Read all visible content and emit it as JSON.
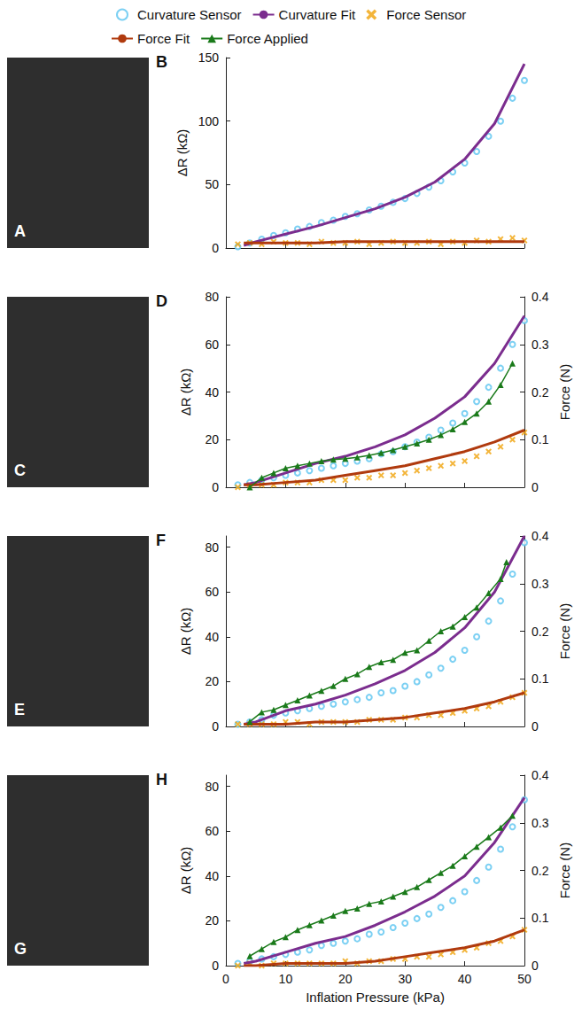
{
  "photo_panels": [
    "A",
    "C",
    "E",
    "G"
  ],
  "chart_data": [
    {
      "type": "scatter",
      "panel": "B",
      "ylabel": "ΔR (kΩ)",
      "xlim": [
        0,
        50
      ],
      "xticks": [
        0,
        10,
        20,
        30,
        40,
        50
      ],
      "ylim": [
        0,
        150
      ],
      "yticks": [
        0,
        50,
        100,
        150
      ],
      "grid": false,
      "legend": "top",
      "tick_labels": "y",
      "series": [
        {
          "name": "Curvature Sensor",
          "type": "scatter",
          "marker": "circle",
          "color": "#5bc4f0",
          "x": [
            2,
            4,
            6,
            8,
            10,
            12,
            14,
            16,
            18,
            20,
            22,
            24,
            26,
            28,
            30,
            32,
            34,
            36,
            38,
            40,
            42,
            44,
            46,
            48,
            50
          ],
          "values": [
            1,
            4,
            7,
            10,
            12,
            15,
            17,
            20,
            22,
            25,
            27,
            30,
            33,
            36,
            39,
            43,
            48,
            53,
            60,
            67,
            76,
            88,
            100,
            118,
            132
          ]
        },
        {
          "name": "Curvature Fit",
          "type": "line",
          "color": "#7b2d8e",
          "x": [
            3,
            5,
            10,
            15,
            20,
            25,
            30,
            35,
            40,
            45,
            50
          ],
          "values": [
            2,
            5,
            11,
            17,
            24,
            31,
            40,
            52,
            70,
            98,
            145
          ]
        },
        {
          "name": "Force Sensor",
          "type": "scatter",
          "marker": "x",
          "color": "#f0a30a",
          "x": [
            2,
            4,
            6,
            8,
            10,
            12,
            14,
            16,
            18,
            20,
            22,
            24,
            26,
            28,
            30,
            32,
            34,
            36,
            38,
            40,
            42,
            44,
            46,
            48,
            50
          ],
          "values": [
            3,
            4,
            3,
            5,
            4,
            4,
            3,
            5,
            4,
            4,
            5,
            3,
            4,
            5,
            4,
            4,
            5,
            3,
            5,
            4,
            6,
            5,
            7,
            8,
            6
          ]
        },
        {
          "name": "Force Fit",
          "type": "line",
          "color": "#b03a0e",
          "x": [
            3,
            5,
            10,
            15,
            20,
            25,
            30,
            35,
            40,
            45,
            50
          ],
          "values": [
            4,
            4,
            4,
            4,
            5,
            5,
            5,
            5,
            5,
            5,
            5
          ]
        }
      ]
    },
    {
      "type": "scatter",
      "panel": "D",
      "ylabel": "ΔR (kΩ)",
      "y2label": "Force (N)",
      "xlim": [
        0,
        50
      ],
      "xticks": [
        0,
        10,
        20,
        30,
        40,
        50
      ],
      "ylim": [
        0,
        80
      ],
      "yticks": [
        0,
        20,
        40,
        60,
        80
      ],
      "y2lim": [
        0,
        0.4
      ],
      "y2ticks": [
        0,
        0.1,
        0.2,
        0.3,
        0.4
      ],
      "grid": false,
      "legend": "top",
      "tick_labels": "y",
      "series": [
        {
          "name": "Curvature Sensor",
          "type": "scatter",
          "marker": "circle",
          "color": "#5bc4f0",
          "x": [
            2,
            4,
            6,
            8,
            10,
            12,
            14,
            16,
            18,
            20,
            22,
            24,
            26,
            28,
            30,
            32,
            34,
            36,
            38,
            40,
            42,
            44,
            46,
            48,
            50
          ],
          "values": [
            1,
            2,
            3,
            4,
            5,
            6,
            7,
            8,
            9,
            10,
            11,
            12,
            14,
            15,
            17,
            19,
            21,
            24,
            27,
            31,
            36,
            42,
            50,
            60,
            70
          ]
        },
        {
          "name": "Curvature Fit",
          "type": "line",
          "color": "#7b2d8e",
          "x": [
            3,
            5,
            10,
            15,
            20,
            25,
            30,
            35,
            40,
            45,
            50
          ],
          "values": [
            1,
            2,
            6,
            10,
            13,
            17,
            22,
            29,
            38,
            52,
            72
          ]
        },
        {
          "name": "Force Sensor",
          "type": "scatter",
          "marker": "x",
          "color": "#f0a30a",
          "x": [
            2,
            4,
            6,
            8,
            10,
            12,
            14,
            16,
            18,
            20,
            22,
            24,
            26,
            28,
            30,
            32,
            34,
            36,
            38,
            40,
            42,
            44,
            46,
            48,
            50
          ],
          "values": [
            0,
            1,
            1,
            1,
            2,
            2,
            2,
            3,
            3,
            3,
            4,
            4,
            5,
            5,
            6,
            7,
            8,
            9,
            10,
            11,
            13,
            15,
            17,
            20,
            23
          ]
        },
        {
          "name": "Force Fit",
          "type": "line",
          "color": "#b03a0e",
          "x": [
            3,
            5,
            10,
            15,
            20,
            25,
            30,
            35,
            40,
            45,
            50
          ],
          "values": [
            1,
            1,
            2,
            3,
            5,
            7,
            9,
            12,
            15,
            19,
            24
          ]
        },
        {
          "name": "Force Applied",
          "type": "line",
          "marker": "triangle",
          "color": "#1a7a1a",
          "axis": "y2",
          "x": [
            4,
            6,
            8,
            10,
            12,
            14,
            16,
            18,
            20,
            22,
            24,
            26,
            28,
            30,
            32,
            34,
            36,
            38,
            40,
            42,
            44,
            46,
            48
          ],
          "values": [
            0,
            0.02,
            0.03,
            0.04,
            0.045,
            0.05,
            0.055,
            0.058,
            0.06,
            0.063,
            0.067,
            0.072,
            0.078,
            0.085,
            0.092,
            0.1,
            0.11,
            0.122,
            0.137,
            0.155,
            0.18,
            0.215,
            0.26
          ]
        }
      ]
    },
    {
      "type": "scatter",
      "panel": "F",
      "ylabel": "ΔR (kΩ)",
      "y2label": "Force (N)",
      "xlim": [
        0,
        50
      ],
      "xticks": [
        0,
        10,
        20,
        30,
        40,
        50
      ],
      "ylim": [
        0,
        85
      ],
      "yticks": [
        0,
        20,
        40,
        60,
        80
      ],
      "y2lim": [
        0,
        0.4
      ],
      "y2ticks": [
        0,
        0.1,
        0.2,
        0.3,
        0.4
      ],
      "grid": false,
      "legend": "top",
      "tick_labels": "y",
      "series": [
        {
          "name": "Curvature Sensor",
          "type": "scatter",
          "marker": "circle",
          "color": "#5bc4f0",
          "x": [
            2,
            4,
            6,
            8,
            10,
            12,
            14,
            16,
            18,
            20,
            22,
            24,
            26,
            28,
            30,
            32,
            34,
            36,
            38,
            40,
            42,
            44,
            46,
            48,
            50
          ],
          "values": [
            1,
            2,
            3,
            5,
            6,
            7,
            8,
            9,
            10,
            11,
            12,
            13,
            15,
            16,
            18,
            20,
            23,
            26,
            30,
            34,
            40,
            47,
            56,
            68,
            82
          ]
        },
        {
          "name": "Curvature Fit",
          "type": "line",
          "color": "#7b2d8e",
          "x": [
            3,
            5,
            10,
            15,
            20,
            25,
            30,
            35,
            40,
            45,
            50
          ],
          "values": [
            1,
            2,
            7,
            10,
            14,
            19,
            25,
            33,
            44,
            60,
            85
          ]
        },
        {
          "name": "Force Sensor",
          "type": "scatter",
          "marker": "x",
          "color": "#f0a30a",
          "x": [
            2,
            4,
            6,
            8,
            10,
            12,
            14,
            16,
            18,
            20,
            22,
            24,
            26,
            28,
            30,
            32,
            34,
            36,
            38,
            40,
            42,
            44,
            46,
            48,
            50
          ],
          "values": [
            1,
            1,
            1,
            1,
            2,
            2,
            1,
            2,
            2,
            2,
            2,
            3,
            3,
            3,
            4,
            4,
            5,
            5,
            6,
            7,
            8,
            9,
            11,
            13,
            15
          ]
        },
        {
          "name": "Force Fit",
          "type": "line",
          "color": "#b03a0e",
          "x": [
            3,
            5,
            10,
            15,
            20,
            25,
            30,
            35,
            40,
            45,
            50
          ],
          "values": [
            1,
            1,
            1,
            2,
            2,
            3,
            4,
            6,
            8,
            11,
            15
          ]
        },
        {
          "name": "Force Applied",
          "type": "line",
          "marker": "triangle",
          "color": "#1a7a1a",
          "axis": "y2",
          "x": [
            4,
            6,
            8,
            10,
            12,
            14,
            16,
            18,
            20,
            22,
            24,
            26,
            28,
            30,
            32,
            34,
            36,
            38,
            40,
            42,
            44,
            46,
            47
          ],
          "values": [
            0.01,
            0.03,
            0.035,
            0.045,
            0.055,
            0.065,
            0.075,
            0.085,
            0.1,
            0.11,
            0.125,
            0.135,
            0.14,
            0.155,
            0.16,
            0.18,
            0.2,
            0.21,
            0.23,
            0.25,
            0.28,
            0.31,
            0.345
          ]
        }
      ]
    },
    {
      "type": "scatter",
      "panel": "H",
      "ylabel": "ΔR (kΩ)",
      "y2label": "Force (N)",
      "xlabel": "Inflation Pressure (kPa)",
      "xlim": [
        0,
        50
      ],
      "xticks": [
        0,
        10,
        20,
        30,
        40,
        50
      ],
      "ylim": [
        0,
        85
      ],
      "yticks": [
        0,
        20,
        40,
        60,
        80
      ],
      "y2lim": [
        0,
        0.4
      ],
      "y2ticks": [
        0,
        0.1,
        0.2,
        0.3,
        0.4
      ],
      "grid": false,
      "legend": "top",
      "series": [
        {
          "name": "Curvature Sensor",
          "type": "scatter",
          "marker": "circle",
          "color": "#5bc4f0",
          "x": [
            2,
            4,
            6,
            8,
            10,
            12,
            14,
            16,
            18,
            20,
            22,
            24,
            26,
            28,
            30,
            32,
            34,
            36,
            38,
            40,
            42,
            44,
            46,
            48,
            50
          ],
          "values": [
            1,
            2,
            3,
            4,
            5,
            6,
            7,
            9,
            10,
            11,
            12,
            14,
            15,
            17,
            19,
            21,
            23,
            26,
            29,
            33,
            38,
            44,
            52,
            62,
            74
          ]
        },
        {
          "name": "Curvature Fit",
          "type": "line",
          "color": "#7b2d8e",
          "x": [
            3,
            5,
            10,
            15,
            20,
            25,
            30,
            35,
            40,
            45,
            50
          ],
          "values": [
            1,
            2,
            6,
            10,
            13,
            18,
            24,
            31,
            40,
            55,
            75
          ]
        },
        {
          "name": "Force Sensor",
          "type": "scatter",
          "marker": "x",
          "color": "#f0a30a",
          "x": [
            2,
            4,
            6,
            8,
            10,
            12,
            14,
            16,
            18,
            20,
            22,
            24,
            26,
            28,
            30,
            32,
            34,
            36,
            38,
            40,
            42,
            44,
            46,
            48,
            50
          ],
          "values": [
            0,
            1,
            0,
            1,
            1,
            1,
            1,
            1,
            1,
            2,
            1,
            2,
            2,
            3,
            3,
            4,
            4,
            5,
            6,
            7,
            8,
            10,
            11,
            13,
            16
          ]
        },
        {
          "name": "Force Fit",
          "type": "line",
          "color": "#b03a0e",
          "x": [
            3,
            5,
            10,
            15,
            20,
            25,
            30,
            35,
            40,
            45,
            50
          ],
          "values": [
            0,
            0,
            1,
            1,
            1,
            2,
            4,
            6,
            8,
            11,
            16
          ]
        },
        {
          "name": "Force Applied",
          "type": "line",
          "marker": "triangle",
          "color": "#1a7a1a",
          "axis": "y2",
          "x": [
            4,
            6,
            8,
            10,
            12,
            14,
            16,
            18,
            20,
            22,
            24,
            26,
            28,
            30,
            32,
            34,
            36,
            38,
            40,
            42,
            44,
            46,
            48
          ],
          "values": [
            0.02,
            0.035,
            0.05,
            0.06,
            0.075,
            0.085,
            0.095,
            0.105,
            0.115,
            0.12,
            0.13,
            0.135,
            0.145,
            0.155,
            0.165,
            0.18,
            0.195,
            0.21,
            0.23,
            0.25,
            0.27,
            0.29,
            0.315
          ]
        }
      ]
    }
  ]
}
